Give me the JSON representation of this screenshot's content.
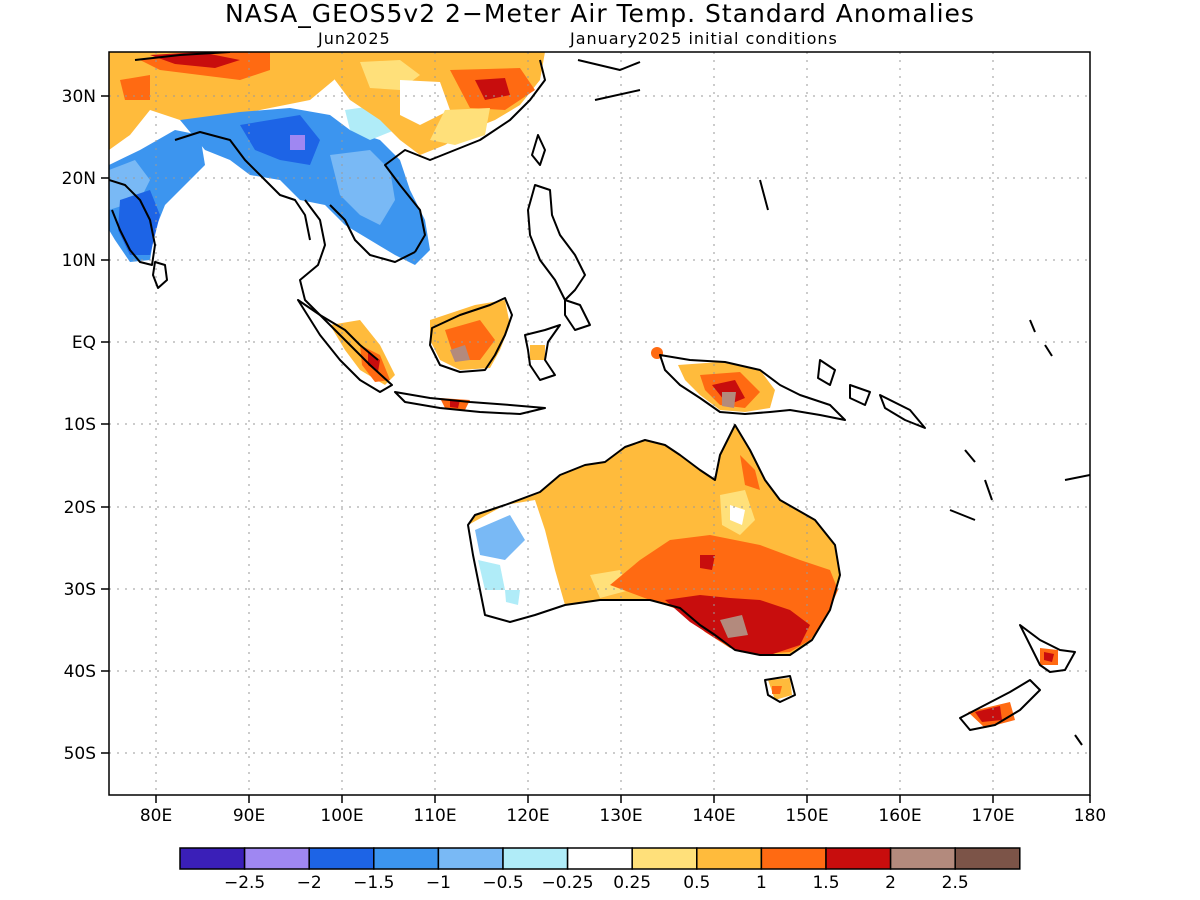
{
  "title": "NASA_GEOS5v2 2−Meter Air Temp. Standard Anomalies",
  "subtitle_left": "Jun2025",
  "subtitle_right": "January2025 initial conditions",
  "lat_ticks": [
    "30N",
    "20N",
    "10N",
    "EQ",
    "10S",
    "20S",
    "30S",
    "40S",
    "50S"
  ],
  "lon_ticks": [
    "80E",
    "90E",
    "100E",
    "110E",
    "120E",
    "130E",
    "140E",
    "150E",
    "160E",
    "170E",
    "180"
  ],
  "colorbar": {
    "colors": [
      "#3a1fb8",
      "#9f87f2",
      "#1d64e6",
      "#3c95ef",
      "#79b9f5",
      "#b0ecf8",
      "#ffffff",
      "#ffe07a",
      "#ffbb3c",
      "#ff6a12",
      "#c80d0d",
      "#b38a7d",
      "#7c5448"
    ],
    "labels": [
      "−2.5",
      "−2",
      "−1.5",
      "−1",
      "−0.5",
      "−0.25",
      "0.25",
      "0.5",
      "1",
      "1.5",
      "2",
      "2.5"
    ]
  }
}
